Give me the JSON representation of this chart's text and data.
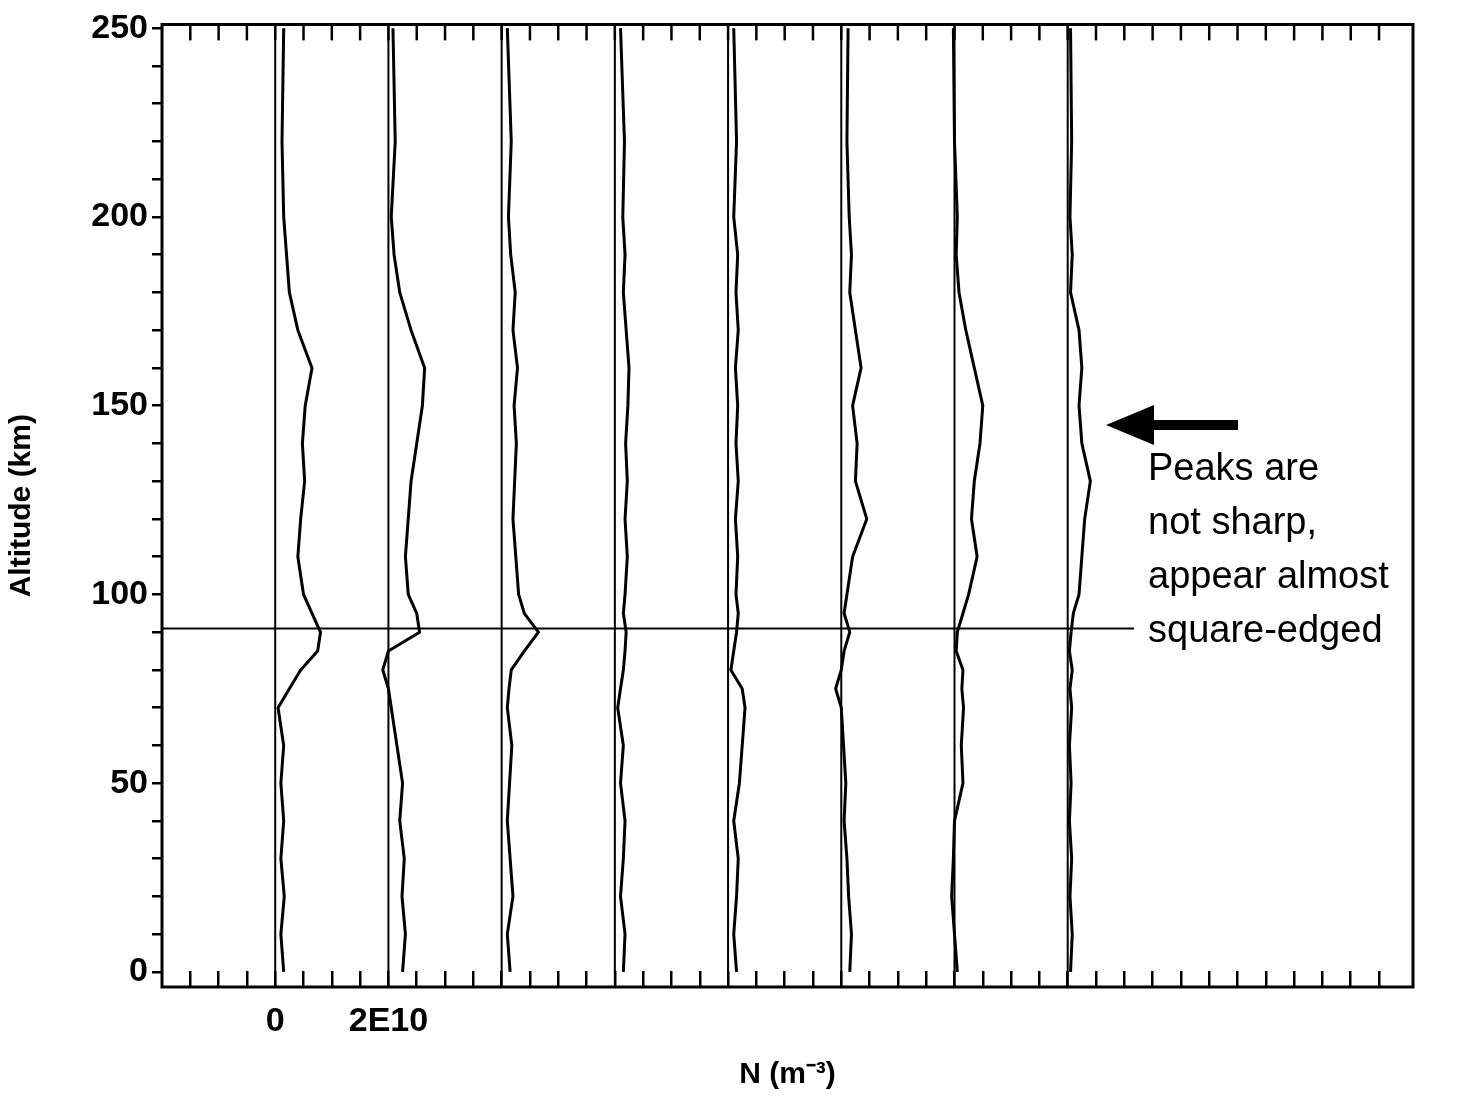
{
  "chart_data": {
    "type": "line",
    "xlabel": "N (m⁻³)",
    "ylabel": "Altitude (km)",
    "annotations": [
      "Peaks are\nnot sharp,\nappear almost\nsquare-edged"
    ],
    "xlim": [
      -20000000000.0,
      201000000000.0
    ],
    "ylim": [
      -4,
      251
    ],
    "xticks": [
      {
        "value": -15000000000.0,
        "label": null
      },
      {
        "value": -10000000000.0,
        "label": null
      },
      {
        "value": -5000000000.0,
        "label": null
      },
      {
        "value": 0,
        "label": "0"
      },
      {
        "value": 5000000000.0,
        "label": null
      },
      {
        "value": 10000000000.0,
        "label": null
      },
      {
        "value": 15000000000.0,
        "label": null
      },
      {
        "value": 20000000000.0,
        "label": "2E10"
      },
      {
        "value": 25000000000.0,
        "label": null
      },
      {
        "value": 30000000000.0,
        "label": null
      },
      {
        "value": 35000000000.0,
        "label": null
      },
      {
        "value": 40000000000.0,
        "label": null
      },
      {
        "value": 45000000000.0,
        "label": null
      },
      {
        "value": 50000000000.0,
        "label": null
      },
      {
        "value": 55000000000.0,
        "label": null
      },
      {
        "value": 60000000000.0,
        "label": null
      },
      {
        "value": 65000000000.0,
        "label": null
      },
      {
        "value": 70000000000.0,
        "label": null
      },
      {
        "value": 75000000000.0,
        "label": null
      },
      {
        "value": 80000000000.0,
        "label": null
      },
      {
        "value": 85000000000.0,
        "label": null
      },
      {
        "value": 90000000000.0,
        "label": null
      },
      {
        "value": 95000000000.0,
        "label": null
      },
      {
        "value": 100000000000.0,
        "label": null
      },
      {
        "value": 105000000000.0,
        "label": null
      },
      {
        "value": 110000000000.0,
        "label": null
      },
      {
        "value": 115000000000.0,
        "label": null
      },
      {
        "value": 120000000000.0,
        "label": null
      },
      {
        "value": 125000000000.0,
        "label": null
      },
      {
        "value": 130000000000.0,
        "label": null
      },
      {
        "value": 135000000000.0,
        "label": null
      },
      {
        "value": 140000000000.0,
        "label": null
      },
      {
        "value": 145000000000.0,
        "label": null
      },
      {
        "value": 150000000000.0,
        "label": null
      },
      {
        "value": 155000000000.0,
        "label": null
      },
      {
        "value": 160000000000.0,
        "label": null
      },
      {
        "value": 165000000000.0,
        "label": null
      },
      {
        "value": 170000000000.0,
        "label": null
      },
      {
        "value": 175000000000.0,
        "label": null
      },
      {
        "value": 180000000000.0,
        "label": null
      },
      {
        "value": 185000000000.0,
        "label": null
      },
      {
        "value": 190000000000.0,
        "label": null
      },
      {
        "value": 195000000000.0,
        "label": null
      }
    ],
    "yticks": [
      0,
      {
        "value": 10,
        "label": null
      },
      {
        "value": 20,
        "label": null
      },
      {
        "value": 30,
        "label": null
      },
      {
        "value": 40,
        "label": null
      },
      50,
      {
        "value": 60,
        "label": null
      },
      {
        "value": 70,
        "label": null
      },
      {
        "value": 80,
        "label": null
      },
      {
        "value": 90,
        "label": null
      },
      100,
      {
        "value": 110,
        "label": null
      },
      {
        "value": 120,
        "label": null
      },
      {
        "value": 130,
        "label": null
      },
      {
        "value": 140,
        "label": null
      },
      150,
      {
        "value": 160,
        "label": null
      },
      {
        "value": 170,
        "label": null
      },
      {
        "value": 180,
        "label": null
      },
      {
        "value": 190,
        "label": null
      },
      200,
      {
        "value": 210,
        "label": null
      },
      {
        "value": 220,
        "label": null
      },
      {
        "value": 230,
        "label": null
      },
      {
        "value": 240,
        "label": null
      },
      250
    ],
    "grid": false,
    "legend": false,
    "marker": "none",
    "line_style": "solid",
    "ref_lines": [
      {
        "axis": "x",
        "value": 0,
        "color": "#000000"
      },
      {
        "axis": "x",
        "value": 20000000000.0,
        "color": "#000000"
      },
      {
        "axis": "x",
        "value": 40000000000.0,
        "color": "#000000"
      },
      {
        "axis": "x",
        "value": 60000000000.0,
        "color": "#000000"
      },
      {
        "axis": "x",
        "value": 80000000000.0,
        "color": "#000000"
      },
      {
        "axis": "x",
        "value": 100000000000.0,
        "color": "#000000"
      },
      {
        "axis": "x",
        "value": 120000000000.0,
        "color": "#000000"
      },
      {
        "axis": "x",
        "value": 140000000000.0,
        "color": "#000000"
      },
      {
        "axis": "y",
        "value": 91,
        "color": "#000000"
      }
    ],
    "series": [
      {
        "color": "#000000",
        "x": [
          1500000000.0,
          1000000000.0,
          1600000000.0,
          1000000000.0,
          1500000000.0,
          1000000000.0,
          1500000000.0,
          500000000.0,
          2500000000.0,
          4500000000.0,
          7500000000.0,
          8000000000.0,
          6500000000.0,
          5000000000.0,
          4000000000.0,
          4500000000.0,
          5200000000.0,
          4800000000.0,
          5300000000.0,
          6500000000.0,
          4000000000.0,
          2500000000.0,
          2000000000.0,
          1500000000.0,
          1200000000.0,
          1500000000.0
        ],
        "values": [
          0,
          10,
          20,
          30,
          40,
          50,
          60,
          70,
          75,
          80,
          85,
          90,
          95,
          100,
          110,
          120,
          130,
          140,
          150,
          160,
          170,
          180,
          190,
          200,
          220,
          250
        ]
      },
      {
        "color": "#000000",
        "x": [
          22500000000.0,
          23000000000.0,
          22400000000.0,
          22800000000.0,
          22000000000.0,
          22500000000.0,
          21500000000.0,
          20500000000.0,
          20000000000.0,
          19000000000.0,
          20000000000.0,
          25500000000.0,
          25000000000.0,
          23500000000.0,
          23000000000.0,
          23500000000.0,
          24000000000.0,
          25000000000.0,
          26000000000.0,
          26400000000.0,
          24000000000.0,
          22000000000.0,
          21000000000.0,
          20500000000.0,
          21200000000.0,
          20800000000.0
        ],
        "values": [
          0,
          10,
          20,
          30,
          40,
          50,
          60,
          70,
          75,
          80,
          85,
          90,
          95,
          100,
          110,
          120,
          130,
          140,
          150,
          160,
          170,
          180,
          190,
          200,
          220,
          250
        ]
      },
      {
        "color": "#000000",
        "x": [
          41500000000.0,
          41000000000.0,
          42000000000.0,
          41500000000.0,
          41000000000.0,
          41400000000.0,
          41800000000.0,
          41000000000.0,
          41300000000.0,
          41700000000.0,
          44000000000.0,
          46500000000.0,
          44000000000.0,
          43000000000.0,
          42500000000.0,
          42000000000.0,
          42300000000.0,
          42600000000.0,
          42200000000.0,
          42800000000.0,
          42000000000.0,
          42400000000.0,
          41600000000.0,
          41200000000.0,
          41700000000.0,
          41000000000.0
        ],
        "values": [
          0,
          10,
          20,
          30,
          40,
          50,
          60,
          70,
          75,
          80,
          85,
          90,
          95,
          100,
          110,
          120,
          130,
          140,
          150,
          160,
          170,
          180,
          190,
          200,
          220,
          250
        ]
      },
      {
        "color": "#000000",
        "x": [
          61500000000.0,
          61800000000.0,
          61000000000.0,
          61500000000.0,
          61800000000.0,
          61000000000.0,
          61500000000.0,
          60500000000.0,
          61000000000.0,
          61500000000.0,
          61800000000.0,
          62000000000.0,
          61500000000.0,
          61800000000.0,
          62200000000.0,
          61800000000.0,
          62200000000.0,
          61900000000.0,
          62300000000.0,
          62500000000.0,
          62000000000.0,
          61500000000.0,
          61800000000.0,
          61400000000.0,
          61700000000.0,
          61000000000.0
        ],
        "values": [
          0,
          10,
          20,
          30,
          40,
          50,
          60,
          70,
          75,
          80,
          85,
          90,
          95,
          100,
          110,
          120,
          130,
          140,
          150,
          160,
          170,
          180,
          190,
          200,
          220,
          250
        ]
      },
      {
        "color": "#000000",
        "x": [
          81500000000.0,
          81000000000.0,
          81500000000.0,
          81800000000.0,
          81000000000.0,
          82000000000.0,
          82500000000.0,
          83000000000.0,
          82500000000.0,
          80500000000.0,
          81000000000.0,
          81500000000.0,
          81800000000.0,
          81400000000.0,
          81700000000.0,
          81300000000.0,
          81800000000.0,
          81400000000.0,
          81700000000.0,
          81300000000.0,
          81800000000.0,
          81400000000.0,
          81700000000.0,
          81000000000.0,
          81500000000.0,
          81000000000.0
        ],
        "values": [
          0,
          10,
          20,
          30,
          40,
          50,
          60,
          70,
          75,
          80,
          85,
          90,
          95,
          100,
          110,
          120,
          130,
          140,
          150,
          160,
          170,
          180,
          190,
          200,
          220,
          250
        ]
      },
      {
        "color": "#000000",
        "x": [
          101500000000.0,
          101800000000.0,
          101300000000.0,
          101000000000.0,
          100500000000.0,
          100800000000.0,
          100400000000.0,
          100000000000.0,
          99000000000.0,
          100000000000.0,
          100500000000.0,
          101500000000.0,
          100500000000.0,
          101000000000.0,
          102000000000.0,
          104500000000.0,
          102500000000.0,
          102800000000.0,
          102000000000.0,
          103500000000.0,
          102500000000.0,
          101500000000.0,
          101800000000.0,
          101400000000.0,
          101000000000.0,
          101200000000.0
        ],
        "values": [
          0,
          10,
          20,
          30,
          40,
          50,
          60,
          70,
          75,
          80,
          85,
          90,
          95,
          100,
          110,
          120,
          130,
          140,
          150,
          160,
          170,
          180,
          190,
          200,
          220,
          250
        ]
      },
      {
        "color": "#000000",
        "x": [
          120500000000.0,
          120000000000.0,
          119500000000.0,
          119800000000.0,
          120000000000.0,
          121500000000.0,
          121200000000.0,
          121600000000.0,
          121300000000.0,
          121500000000.0,
          120300000000.0,
          120500000000.0,
          121500000000.0,
          122500000000.0,
          124000000000.0,
          123000000000.0,
          123500000000.0,
          124500000000.0,
          125000000000.0,
          123500000000.0,
          122000000000.0,
          120800000000.0,
          120300000000.0,
          120500000000.0,
          120000000000.0,
          119800000000.0
        ],
        "values": [
          0,
          10,
          20,
          30,
          40,
          50,
          60,
          70,
          75,
          80,
          85,
          90,
          95,
          100,
          110,
          120,
          130,
          140,
          150,
          160,
          170,
          180,
          190,
          200,
          220,
          250
        ]
      },
      {
        "color": "#000000",
        "x": [
          140500000000.0,
          140800000000.0,
          140400000000.0,
          140700000000.0,
          140300000000.0,
          140600000000.0,
          140300000000.0,
          140700000000.0,
          140400000000.0,
          140800000000.0,
          140300000000.0,
          140600000000.0,
          141000000000.0,
          142000000000.0,
          142500000000.0,
          143000000000.0,
          144000000000.0,
          142500000000.0,
          142000000000.0,
          142500000000.0,
          142000000000.0,
          140500000000.0,
          140800000000.0,
          140400000000.0,
          140700000000.0,
          140500000000.0
        ],
        "values": [
          0,
          10,
          20,
          30,
          40,
          50,
          60,
          70,
          75,
          80,
          85,
          90,
          95,
          100,
          110,
          120,
          130,
          140,
          150,
          160,
          170,
          180,
          190,
          200,
          220,
          250
        ]
      }
    ]
  }
}
